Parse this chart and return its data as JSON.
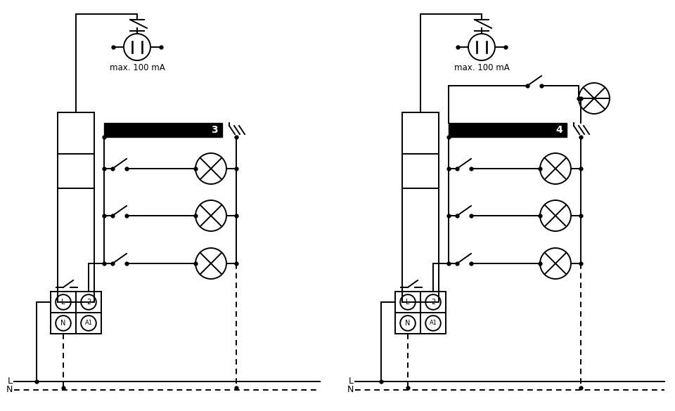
{
  "bg_color": "#ffffff",
  "lc": "#000000",
  "lw": 1.4,
  "text_100mA": "max. 100 mA",
  "label1": "3",
  "label2": "4",
  "L_label": "L",
  "N_label": "N",
  "term_labels_top": [
    "L",
    "2"
  ],
  "term_labels_bot": [
    "N",
    "A1"
  ]
}
